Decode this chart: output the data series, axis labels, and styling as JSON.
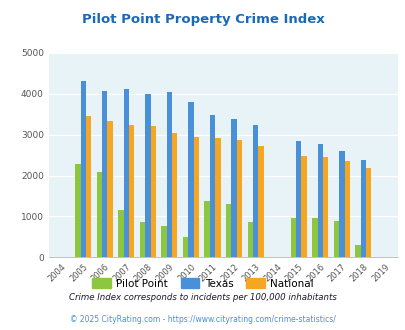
{
  "title": "Pilot Point Property Crime Index",
  "title_color": "#1969b8",
  "plot_bg_color": "#e8f3f8",
  "years": [
    2004,
    2005,
    2006,
    2007,
    2008,
    2009,
    2010,
    2011,
    2012,
    2013,
    2014,
    2015,
    2016,
    2017,
    2018,
    2019
  ],
  "pilot_point": [
    null,
    2280,
    2090,
    1170,
    860,
    760,
    490,
    1370,
    1300,
    870,
    null,
    970,
    970,
    900,
    305,
    null
  ],
  "texas": [
    null,
    4310,
    4070,
    4110,
    4000,
    4030,
    3800,
    3480,
    3370,
    3240,
    null,
    2840,
    2770,
    2590,
    2390,
    null
  ],
  "national": [
    null,
    3450,
    3340,
    3240,
    3210,
    3030,
    2940,
    2930,
    2870,
    2720,
    null,
    2490,
    2460,
    2360,
    2190,
    null
  ],
  "pilot_color": "#8dc63f",
  "texas_color": "#4a90d9",
  "national_color": "#f5a623",
  "ylim": [
    0,
    5000
  ],
  "yticks": [
    0,
    1000,
    2000,
    3000,
    4000,
    5000
  ],
  "footnote1": "Crime Index corresponds to incidents per 100,000 inhabitants",
  "footnote2": "© 2025 CityRating.com - https://www.cityrating.com/crime-statistics/",
  "footnote1_color": "#1a1a2e",
  "footnote2_color": "#4a90d9",
  "bar_width": 0.25,
  "legend_labels": [
    "Pilot Point",
    "Texas",
    "National"
  ]
}
